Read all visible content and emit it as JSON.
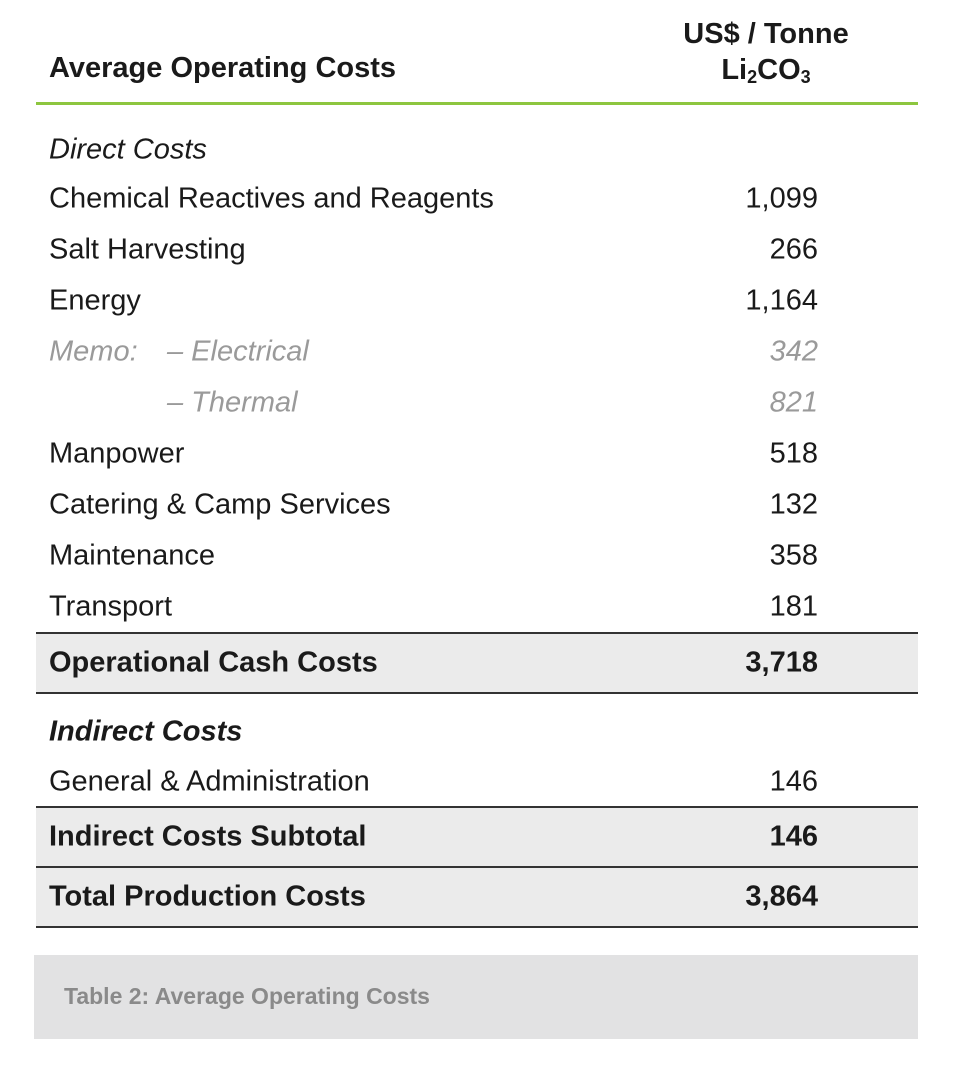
{
  "header": {
    "label": "Average Operating Costs",
    "unit_line1": "US$ / Tonne",
    "unit_chem": "Li",
    "unit_sub1": "2",
    "unit_chem2": "CO",
    "unit_sub2": "3"
  },
  "direct": {
    "title": "Direct Costs",
    "rows": [
      {
        "name": "Chemical Reactives and Reagents",
        "value": "1,099"
      },
      {
        "name": "Salt Harvesting",
        "value": "266"
      },
      {
        "name": "Energy",
        "value": "1,164"
      }
    ],
    "memo": {
      "prefix": "Memo:",
      "items": [
        {
          "name": "– Electrical",
          "value": "342"
        },
        {
          "name": "– Thermal",
          "value": "821"
        }
      ]
    },
    "rows2": [
      {
        "name": "Manpower",
        "value": "518"
      },
      {
        "name": "Catering & Camp Services",
        "value": "132"
      },
      {
        "name": "Maintenance",
        "value": "358"
      },
      {
        "name": "Transport",
        "value": "181"
      }
    ]
  },
  "operational_total": {
    "name": "Operational Cash Costs",
    "value": "3,718"
  },
  "indirect": {
    "title": "Indirect Costs",
    "rows": [
      {
        "name": "General & Administration",
        "value": "146"
      }
    ]
  },
  "indirect_total": {
    "name": "Indirect Costs Subtotal",
    "value": "146"
  },
  "grand_total": {
    "name": "Total Production Costs",
    "value": "3,864"
  },
  "caption": "Table 2: Average Operating Costs"
}
